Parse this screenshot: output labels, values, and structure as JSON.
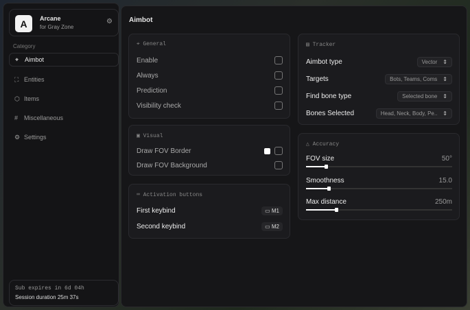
{
  "brand": {
    "name": "Arcane",
    "subtitle": "for Gray Zone",
    "logo_letter": "A"
  },
  "sidebar": {
    "category_label": "Category",
    "items": [
      {
        "label": "Aimbot",
        "icon": "crosshair-icon",
        "active": true
      },
      {
        "label": "Entities",
        "icon": "user-scan-icon"
      },
      {
        "label": "Items",
        "icon": "box-icon"
      },
      {
        "label": "Miscellaneous",
        "icon": "hash-icon"
      },
      {
        "label": "Settings",
        "icon": "gear-icon"
      }
    ]
  },
  "subscription": {
    "expires": "Sub expires in 6d 04h",
    "session": "Session duration 25m 37s"
  },
  "main": {
    "title": "Aimbot",
    "general": {
      "title": "General",
      "items": [
        {
          "label": "Enable",
          "checked": false
        },
        {
          "label": "Always",
          "checked": false
        },
        {
          "label": "Prediction",
          "checked": false
        },
        {
          "label": "Visibility check",
          "checked": false
        }
      ]
    },
    "visual": {
      "title": "Visual",
      "items": [
        {
          "label": "Draw FOV Border",
          "checked": false,
          "color": "#ffffff"
        },
        {
          "label": "Draw FOV Background",
          "checked": false
        }
      ]
    },
    "activation": {
      "title": "Activation buttons",
      "items": [
        {
          "label": "First keybind",
          "key": "M1"
        },
        {
          "label": "Second keybind",
          "key": "M2"
        }
      ]
    },
    "tracker": {
      "title": "Tracker",
      "items": [
        {
          "label": "Aimbot type",
          "value": "Vector"
        },
        {
          "label": "Targets",
          "value": "Bots, Teams, Coms"
        },
        {
          "label": "Find bone type",
          "value": "Selected bone"
        },
        {
          "label": "Bones Selected",
          "value": "Head, Neck, Body, Pe.."
        }
      ]
    },
    "accuracy": {
      "title": "Accuracy",
      "sliders": [
        {
          "label": "FOV size",
          "value": "50°",
          "fill_pct": 14
        },
        {
          "label": "Smoothness",
          "value": "15.0",
          "fill_pct": 16
        },
        {
          "label": "Max distance",
          "value": "250m",
          "fill_pct": 21
        }
      ]
    }
  }
}
